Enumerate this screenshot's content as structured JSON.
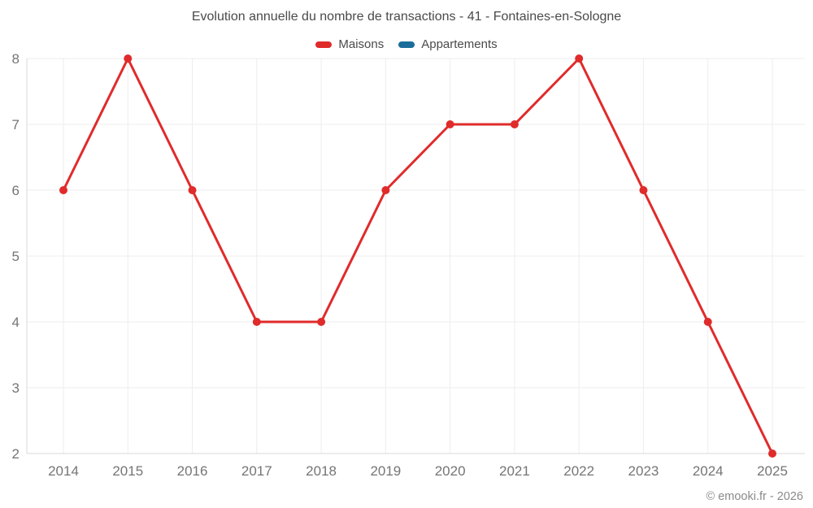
{
  "chart_data": {
    "type": "line",
    "title": "Evolution annuelle du nombre de transactions - 41 - Fontaines-en-Sologne",
    "categories": [
      "2014",
      "2015",
      "2016",
      "2017",
      "2018",
      "2019",
      "2020",
      "2021",
      "2022",
      "2023",
      "2024",
      "2025"
    ],
    "series": [
      {
        "name": "Maisons",
        "color": "#e02b2b",
        "values": [
          6,
          8,
          6,
          4,
          4,
          6,
          7,
          7,
          8,
          6,
          4,
          2
        ]
      },
      {
        "name": "Appartements",
        "color": "#1a6d9a",
        "values": []
      }
    ],
    "xlabel": "",
    "ylabel": "",
    "ylim": [
      2,
      8
    ],
    "yticks": [
      2,
      3,
      4,
      5,
      6,
      7,
      8
    ],
    "grid": true,
    "legend_position": "top",
    "tick_color": "#757575",
    "grid_color": "#ededed",
    "axis_color": "#d9d9d9"
  },
  "footer": {
    "copyright": "© emooki.fr - 2026"
  }
}
